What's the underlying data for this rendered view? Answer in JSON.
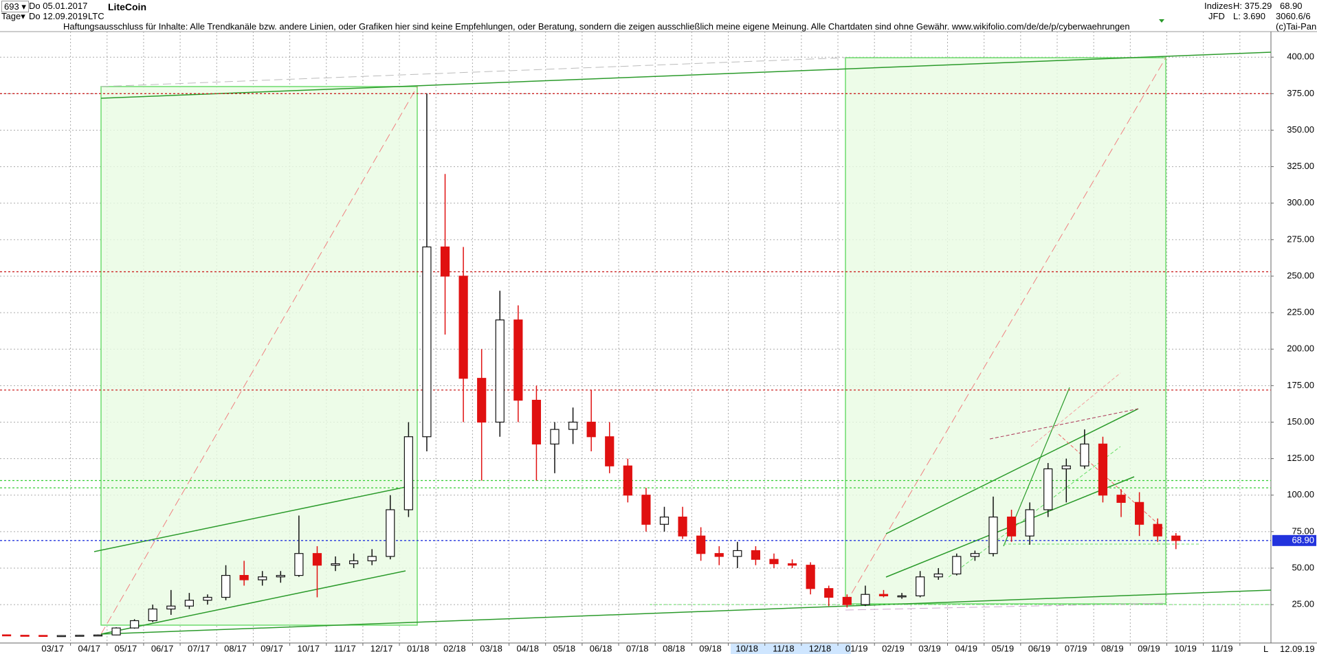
{
  "header": {
    "count": "693",
    "start": "Do 05.01.2017",
    "interval": "Tage",
    "end": "Do 12.09.2019",
    "symbol": "LTC",
    "market": "Indizes",
    "broker": "JFD",
    "high": "H: 375.29",
    "low": "L: 3.690",
    "last": "68.90",
    "extra": "3060.6/6",
    "copyright": "(c)Tai-Pan"
  },
  "footer": {
    "date": "12.09.19",
    "scale": "L"
  },
  "chart_data": {
    "type": "candlestick",
    "title": "LiteCoin",
    "subtitle": "Haftungsausschluss für Inhalte: Alle Trendkanäle bzw. andere Linien, oder Grafiken hier sind keine Empfehlungen, oder Beratung, sondern die zeigen ausschließlich meine eigene Meinung. Alle Chartdaten sind ohne Gewähr.  www.wikifolio.com/de/de/p/cyberwaehrungen",
    "x": [
      0.25,
      0.75,
      1.25,
      1.75,
      2.25,
      2.75,
      3.25,
      3.75,
      4.25,
      4.75,
      5.25,
      5.75,
      6.25,
      6.75,
      7.25,
      7.75,
      8.25,
      8.75,
      9.25,
      9.75,
      10.25,
      10.75,
      11.25,
      11.75,
      12.25,
      12.75,
      13.25,
      13.75,
      14.25,
      14.75,
      15.25,
      15.75,
      16.25,
      16.75,
      17.25,
      17.75,
      18.25,
      18.75,
      19.25,
      19.75,
      20.25,
      20.75,
      21.25,
      21.75,
      22.25,
      22.75,
      23.25,
      23.75,
      24.25,
      24.75,
      25.25,
      25.75,
      26.25,
      26.75,
      27.25,
      27.75,
      28.25,
      28.75,
      29.25,
      29.75,
      30.25,
      30.75,
      31.25,
      31.75,
      32.25
    ],
    "open": [
      4.3,
      4.0,
      3.9,
      3.8,
      3.8,
      4.0,
      4.2,
      9.0,
      14,
      22,
      24,
      28,
      30,
      45,
      42,
      44,
      45,
      60,
      52,
      53,
      55,
      58,
      90,
      140,
      270,
      250,
      180,
      150,
      220,
      165,
      135,
      145,
      150,
      140,
      120,
      100,
      80,
      85,
      72,
      60,
      58,
      62,
      56,
      53,
      52,
      36,
      30,
      25,
      32,
      31,
      31,
      44,
      46,
      58,
      60,
      85,
      72,
      90,
      118,
      120,
      135,
      100,
      95,
      80,
      72
    ],
    "high": [
      4.6,
      4.1,
      4.0,
      4.0,
      4.2,
      4.5,
      9.5,
      15,
      25,
      35,
      33,
      32,
      52,
      55,
      48,
      48,
      86,
      65,
      58,
      60,
      63,
      100,
      150,
      375,
      320,
      270,
      200,
      240,
      230,
      175,
      150,
      160,
      172,
      150,
      125,
      105,
      92,
      92,
      78,
      65,
      68,
      65,
      60,
      56,
      54,
      38,
      32,
      38,
      35,
      33,
      48,
      50,
      60,
      62,
      99,
      90,
      95,
      122,
      125,
      145,
      140,
      104,
      102,
      84,
      74
    ],
    "low": [
      3.8,
      3.7,
      3.6,
      3.7,
      3.7,
      3.6,
      4.0,
      8.5,
      13,
      18,
      22,
      25,
      28,
      38,
      38,
      40,
      44,
      30,
      48,
      50,
      52,
      56,
      85,
      130,
      210,
      150,
      110,
      140,
      150,
      110,
      115,
      135,
      130,
      115,
      95,
      75,
      75,
      70,
      55,
      52,
      50,
      52,
      50,
      50,
      32,
      24,
      23,
      24,
      30,
      29,
      30,
      42,
      45,
      55,
      58,
      68,
      66,
      85,
      95,
      118,
      95,
      85,
      72,
      68,
      63
    ],
    "close": [
      4.0,
      3.9,
      3.8,
      3.8,
      4.0,
      4.2,
      9.0,
      14,
      22,
      24,
      28,
      30,
      45,
      42,
      44,
      45,
      60,
      52,
      53,
      55,
      58,
      90,
      140,
      270,
      250,
      180,
      150,
      220,
      165,
      135,
      145,
      150,
      140,
      120,
      100,
      80,
      85,
      72,
      60,
      58,
      62,
      56,
      53,
      52,
      36,
      30,
      25,
      32,
      31,
      31,
      44,
      46,
      58,
      60,
      85,
      72,
      90,
      118,
      120,
      135,
      100,
      95,
      80,
      72,
      68.9
    ],
    "up_color": "#111111",
    "down_color": "#e01010",
    "xlim": [
      0.07,
      34.85
    ],
    "xticks": [
      {
        "value": 2,
        "label": "03/17"
      },
      {
        "value": 3,
        "label": "04/17"
      },
      {
        "value": 4,
        "label": "05/17"
      },
      {
        "value": 5,
        "label": "06/17"
      },
      {
        "value": 6,
        "label": "07/17"
      },
      {
        "value": 7,
        "label": "08/17"
      },
      {
        "value": 8,
        "label": "09/17"
      },
      {
        "value": 9,
        "label": "10/17"
      },
      {
        "value": 10,
        "label": "11/17"
      },
      {
        "value": 11,
        "label": "12/17"
      },
      {
        "value": 12,
        "label": "01/18"
      },
      {
        "value": 13,
        "label": "02/18"
      },
      {
        "value": 14,
        "label": "03/18"
      },
      {
        "value": 15,
        "label": "04/18"
      },
      {
        "value": 16,
        "label": "05/18"
      },
      {
        "value": 17,
        "label": "06/18"
      },
      {
        "value": 18,
        "label": "07/18"
      },
      {
        "value": 19,
        "label": "08/18"
      },
      {
        "value": 20,
        "label": "09/18"
      },
      {
        "value": 21,
        "label": "10/18"
      },
      {
        "value": 22,
        "label": "11/18"
      },
      {
        "value": 23,
        "label": "12/18"
      },
      {
        "value": 24,
        "label": "01/19"
      },
      {
        "value": 25,
        "label": "02/19"
      },
      {
        "value": 26,
        "label": "03/19"
      },
      {
        "value": 27,
        "label": "04/19"
      },
      {
        "value": 28,
        "label": "05/19"
      },
      {
        "value": 29,
        "label": "06/19"
      },
      {
        "value": 30,
        "label": "07/19"
      },
      {
        "value": 31,
        "label": "08/19"
      },
      {
        "value": 32,
        "label": "09/19"
      },
      {
        "value": 33,
        "label": "10/19"
      },
      {
        "value": 34,
        "label": "11/19"
      }
    ],
    "ylim": [
      -1.3,
      417.5
    ],
    "yticks": [
      {
        "value": 25,
        "label": "25.00"
      },
      {
        "value": 50,
        "label": "50.00"
      },
      {
        "value": 75,
        "label": "75.00"
      },
      {
        "value": 100,
        "label": "100.00"
      },
      {
        "value": 125,
        "label": "125.00"
      },
      {
        "value": 150,
        "label": "150.00"
      },
      {
        "value": 175,
        "label": "175.00"
      },
      {
        "value": 200,
        "label": "200.00"
      },
      {
        "value": 225,
        "label": "225.00"
      },
      {
        "value": 250,
        "label": "250.00"
      },
      {
        "value": 275,
        "label": "275.00"
      },
      {
        "value": 300,
        "label": "300.00"
      },
      {
        "value": 325,
        "label": "325.00"
      },
      {
        "value": 350,
        "label": "350.00"
      },
      {
        "value": 375,
        "label": "375.00"
      },
      {
        "value": 400,
        "label": "400.00"
      }
    ],
    "grid": true,
    "levels": [
      {
        "value": 375,
        "color": "#cc2222"
      },
      {
        "value": 253,
        "color": "#cc2222"
      },
      {
        "value": 172,
        "color": "#cc2222"
      },
      {
        "value": 110,
        "color": "#33cc33"
      },
      {
        "value": 105,
        "color": "#33cc33"
      },
      {
        "value": 68.9,
        "color": "#2233dd",
        "label": "68.90"
      }
    ]
  }
}
